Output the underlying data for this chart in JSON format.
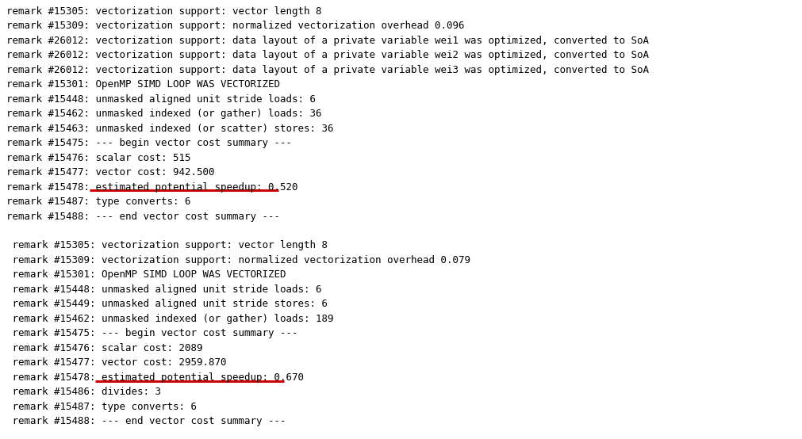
{
  "bg_color": "#ffffff",
  "text_color": "#000000",
  "red_color": "#cc0000",
  "font_size": 9.0,
  "lines_block1": [
    "remark #15305: vectorization support: vector length 8",
    "remark #15309: vectorization support: normalized vectorization overhead 0.096",
    "remark #26012: vectorization support: data layout of a private variable wei1 was optimized, converted to SoA",
    "remark #26012: vectorization support: data layout of a private variable wei2 was optimized, converted to SoA",
    "remark #26012: vectorization support: data layout of a private variable wei3 was optimized, converted to SoA",
    "remark #15301: OpenMP SIMD LOOP WAS VECTORIZED",
    "remark #15448: unmasked aligned unit stride loads: 6",
    "remark #15462: unmasked indexed (or gather) loads: 36",
    "remark #15463: unmasked indexed (or scatter) stores: 36",
    "remark #15475: --- begin vector cost summary ---",
    "remark #15476: scalar cost: 515",
    "remark #15477: vector cost: 942.500",
    "remark #15478: estimated potential speedup: 0.520",
    "remark #15487: type converts: 6",
    "remark #15488: --- end vector cost summary ---"
  ],
  "lines_block2": [
    " remark #15305: vectorization support: vector length 8",
    " remark #15309: vectorization support: normalized vectorization overhead 0.079",
    " remark #15301: OpenMP SIMD LOOP WAS VECTORIZED",
    " remark #15448: unmasked aligned unit stride loads: 6",
    " remark #15449: unmasked aligned unit stride stores: 6",
    " remark #15462: unmasked indexed (or gather) loads: 189",
    " remark #15475: --- begin vector cost summary ---",
    " remark #15476: scalar cost: 2089",
    " remark #15477: vector cost: 2959.870",
    " remark #15478: estimated potential speedup: 0.670",
    " remark #15486: divides: 3",
    " remark #15487: type converts: 6",
    " remark #15488: --- end vector cost summary ---"
  ],
  "underline1_line_index": 12,
  "underline2_line_index": 9,
  "underline_text1": "estimated potential speedup: 0.520",
  "underline_text2": "estimated potential speedup: 0.670",
  "prefix1_chars": 15,
  "prefix2_chars": 16,
  "underline1_chars": 34,
  "underline2_chars": 34
}
